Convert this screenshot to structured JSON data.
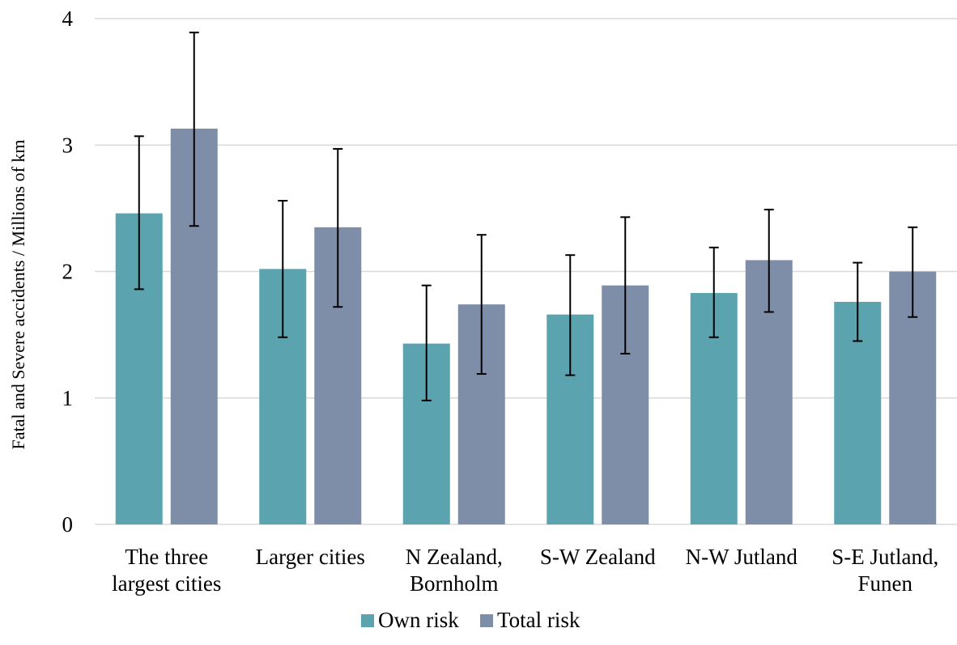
{
  "chart_data": {
    "type": "bar",
    "title": "",
    "xlabel": "",
    "ylabel": "Fatal and Severe accidents / Millions of km",
    "ylim": [
      0,
      4
    ],
    "yticks": [
      0,
      1,
      2,
      3,
      4
    ],
    "grid": true,
    "legend_position": "bottom",
    "categories": [
      [
        "The three",
        "largest cities"
      ],
      [
        "Larger cities"
      ],
      [
        "N Zealand,",
        "Bornholm"
      ],
      [
        "S-W Zealand"
      ],
      [
        "N-W Jutland"
      ],
      [
        "S-E Jutland,",
        "Funen"
      ]
    ],
    "series": [
      {
        "name": "Own risk",
        "color": "#5ba3ae",
        "values": [
          2.46,
          2.02,
          1.43,
          1.66,
          1.83,
          1.76
        ],
        "err_low": [
          1.86,
          1.48,
          0.98,
          1.18,
          1.48,
          1.45
        ],
        "err_high": [
          3.07,
          2.56,
          1.89,
          2.13,
          2.19,
          2.07
        ]
      },
      {
        "name": "Total risk",
        "color": "#7f8ea8",
        "values": [
          3.13,
          2.35,
          1.74,
          1.89,
          2.09,
          2.0
        ],
        "err_low": [
          2.36,
          1.72,
          1.19,
          1.35,
          1.68,
          1.64
        ],
        "err_high": [
          3.89,
          2.97,
          2.29,
          2.43,
          2.49,
          2.35
        ]
      }
    ]
  }
}
